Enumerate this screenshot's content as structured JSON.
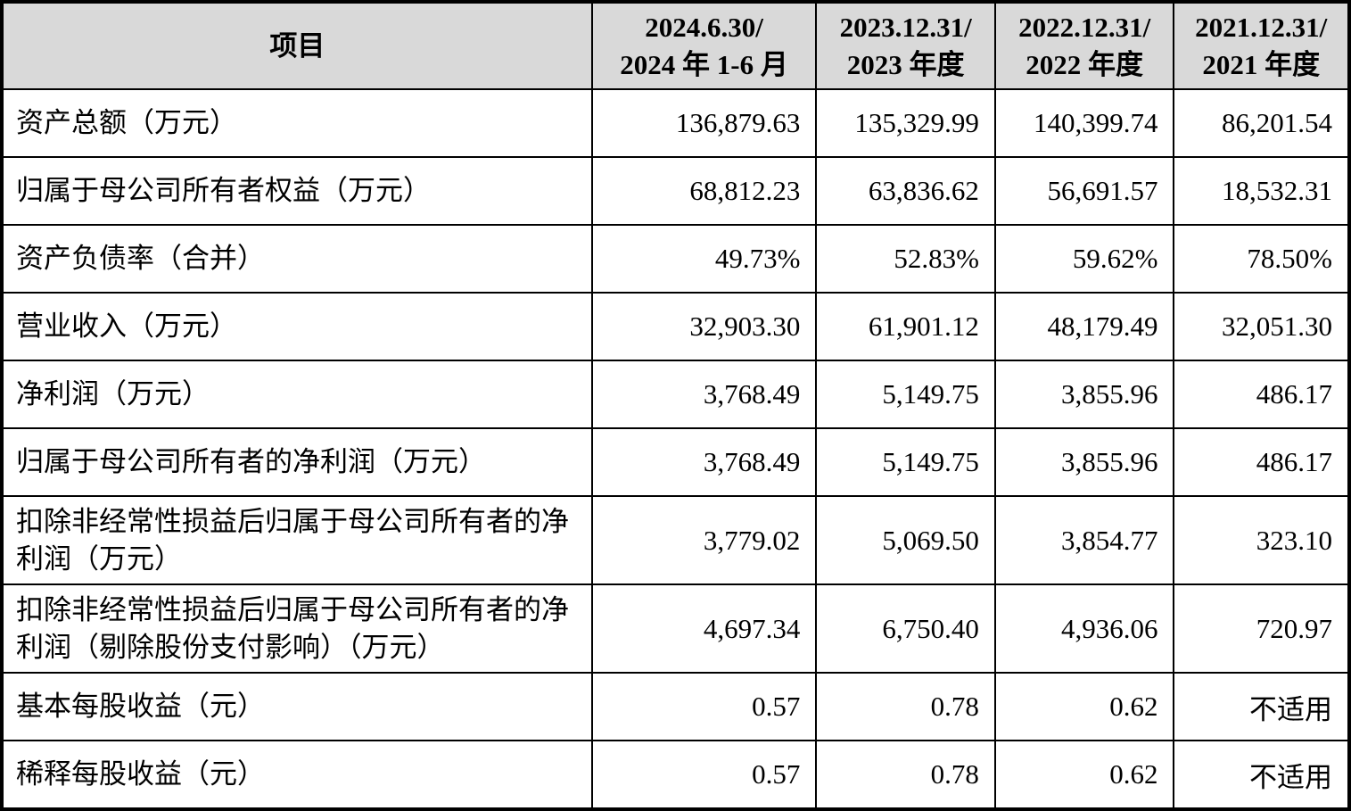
{
  "table": {
    "colors": {
      "header_bg": "#d9d9d9",
      "border": "#000000",
      "text": "#000000"
    },
    "header": {
      "item_label": "项目",
      "periods": [
        {
          "line1": "2024.6.30/",
          "line2": "2024 年 1-6 月"
        },
        {
          "line1": "2023.12.31/",
          "line2": "2023 年度"
        },
        {
          "line1": "2022.12.31/",
          "line2": "2022 年度"
        },
        {
          "line1": "2021.12.31/",
          "line2": "2021 年度"
        }
      ]
    },
    "rows": [
      {
        "label": "资产总额（万元）",
        "tall": false,
        "values": [
          "136,879.63",
          "135,329.99",
          "140,399.74",
          "86,201.54"
        ]
      },
      {
        "label": "归属于母公司所有者权益（万元）",
        "tall": false,
        "values": [
          "68,812.23",
          "63,836.62",
          "56,691.57",
          "18,532.31"
        ]
      },
      {
        "label": "资产负债率（合并）",
        "tall": false,
        "values": [
          "49.73%",
          "52.83%",
          "59.62%",
          "78.50%"
        ]
      },
      {
        "label": "营业收入（万元）",
        "tall": false,
        "values": [
          "32,903.30",
          "61,901.12",
          "48,179.49",
          "32,051.30"
        ]
      },
      {
        "label": "净利润（万元）",
        "tall": false,
        "values": [
          "3,768.49",
          "5,149.75",
          "3,855.96",
          "486.17"
        ]
      },
      {
        "label": "归属于母公司所有者的净利润（万元）",
        "tall": false,
        "values": [
          "3,768.49",
          "5,149.75",
          "3,855.96",
          "486.17"
        ]
      },
      {
        "label": "扣除非经常性损益后归属于母公司所有者的净利润（万元）",
        "tall": true,
        "values": [
          "3,779.02",
          "5,069.50",
          "3,854.77",
          "323.10"
        ]
      },
      {
        "label": "扣除非经常性损益后归属于母公司所有者的净利润（剔除股份支付影响）（万元）",
        "tall": true,
        "values": [
          "4,697.34",
          "6,750.40",
          "4,936.06",
          "720.97"
        ]
      },
      {
        "label": "基本每股收益（元）",
        "tall": false,
        "values": [
          "0.57",
          "0.78",
          "0.62",
          "不适用"
        ]
      },
      {
        "label": "稀释每股收益（元）",
        "tall": false,
        "values": [
          "0.57",
          "0.78",
          "0.62",
          "不适用"
        ]
      }
    ]
  }
}
